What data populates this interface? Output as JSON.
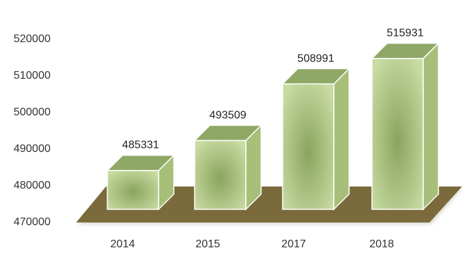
{
  "chart_data": {
    "type": "bar",
    "style": "3d",
    "categories": [
      "2014",
      "2015",
      "2017",
      "2018"
    ],
    "values": [
      485331,
      493509,
      508991,
      515931
    ],
    "data_labels": [
      "485331",
      "493509",
      "508991",
      "515931"
    ],
    "ylim": [
      470000,
      520000
    ],
    "yticks": [
      "470000",
      "480000",
      "490000",
      "500000",
      "510000",
      "520000"
    ],
    "grid": false,
    "legend": "none",
    "colors": {
      "bar_front_edge": "#c9dba2",
      "bar_front_center": "#8aa45e",
      "bar_top": "#8fa866",
      "bar_side": "#a7bf78",
      "bar_stroke": "#ffffff",
      "floor": "#7a6a3c",
      "floor_shadow": "#c8c4b4"
    }
  }
}
